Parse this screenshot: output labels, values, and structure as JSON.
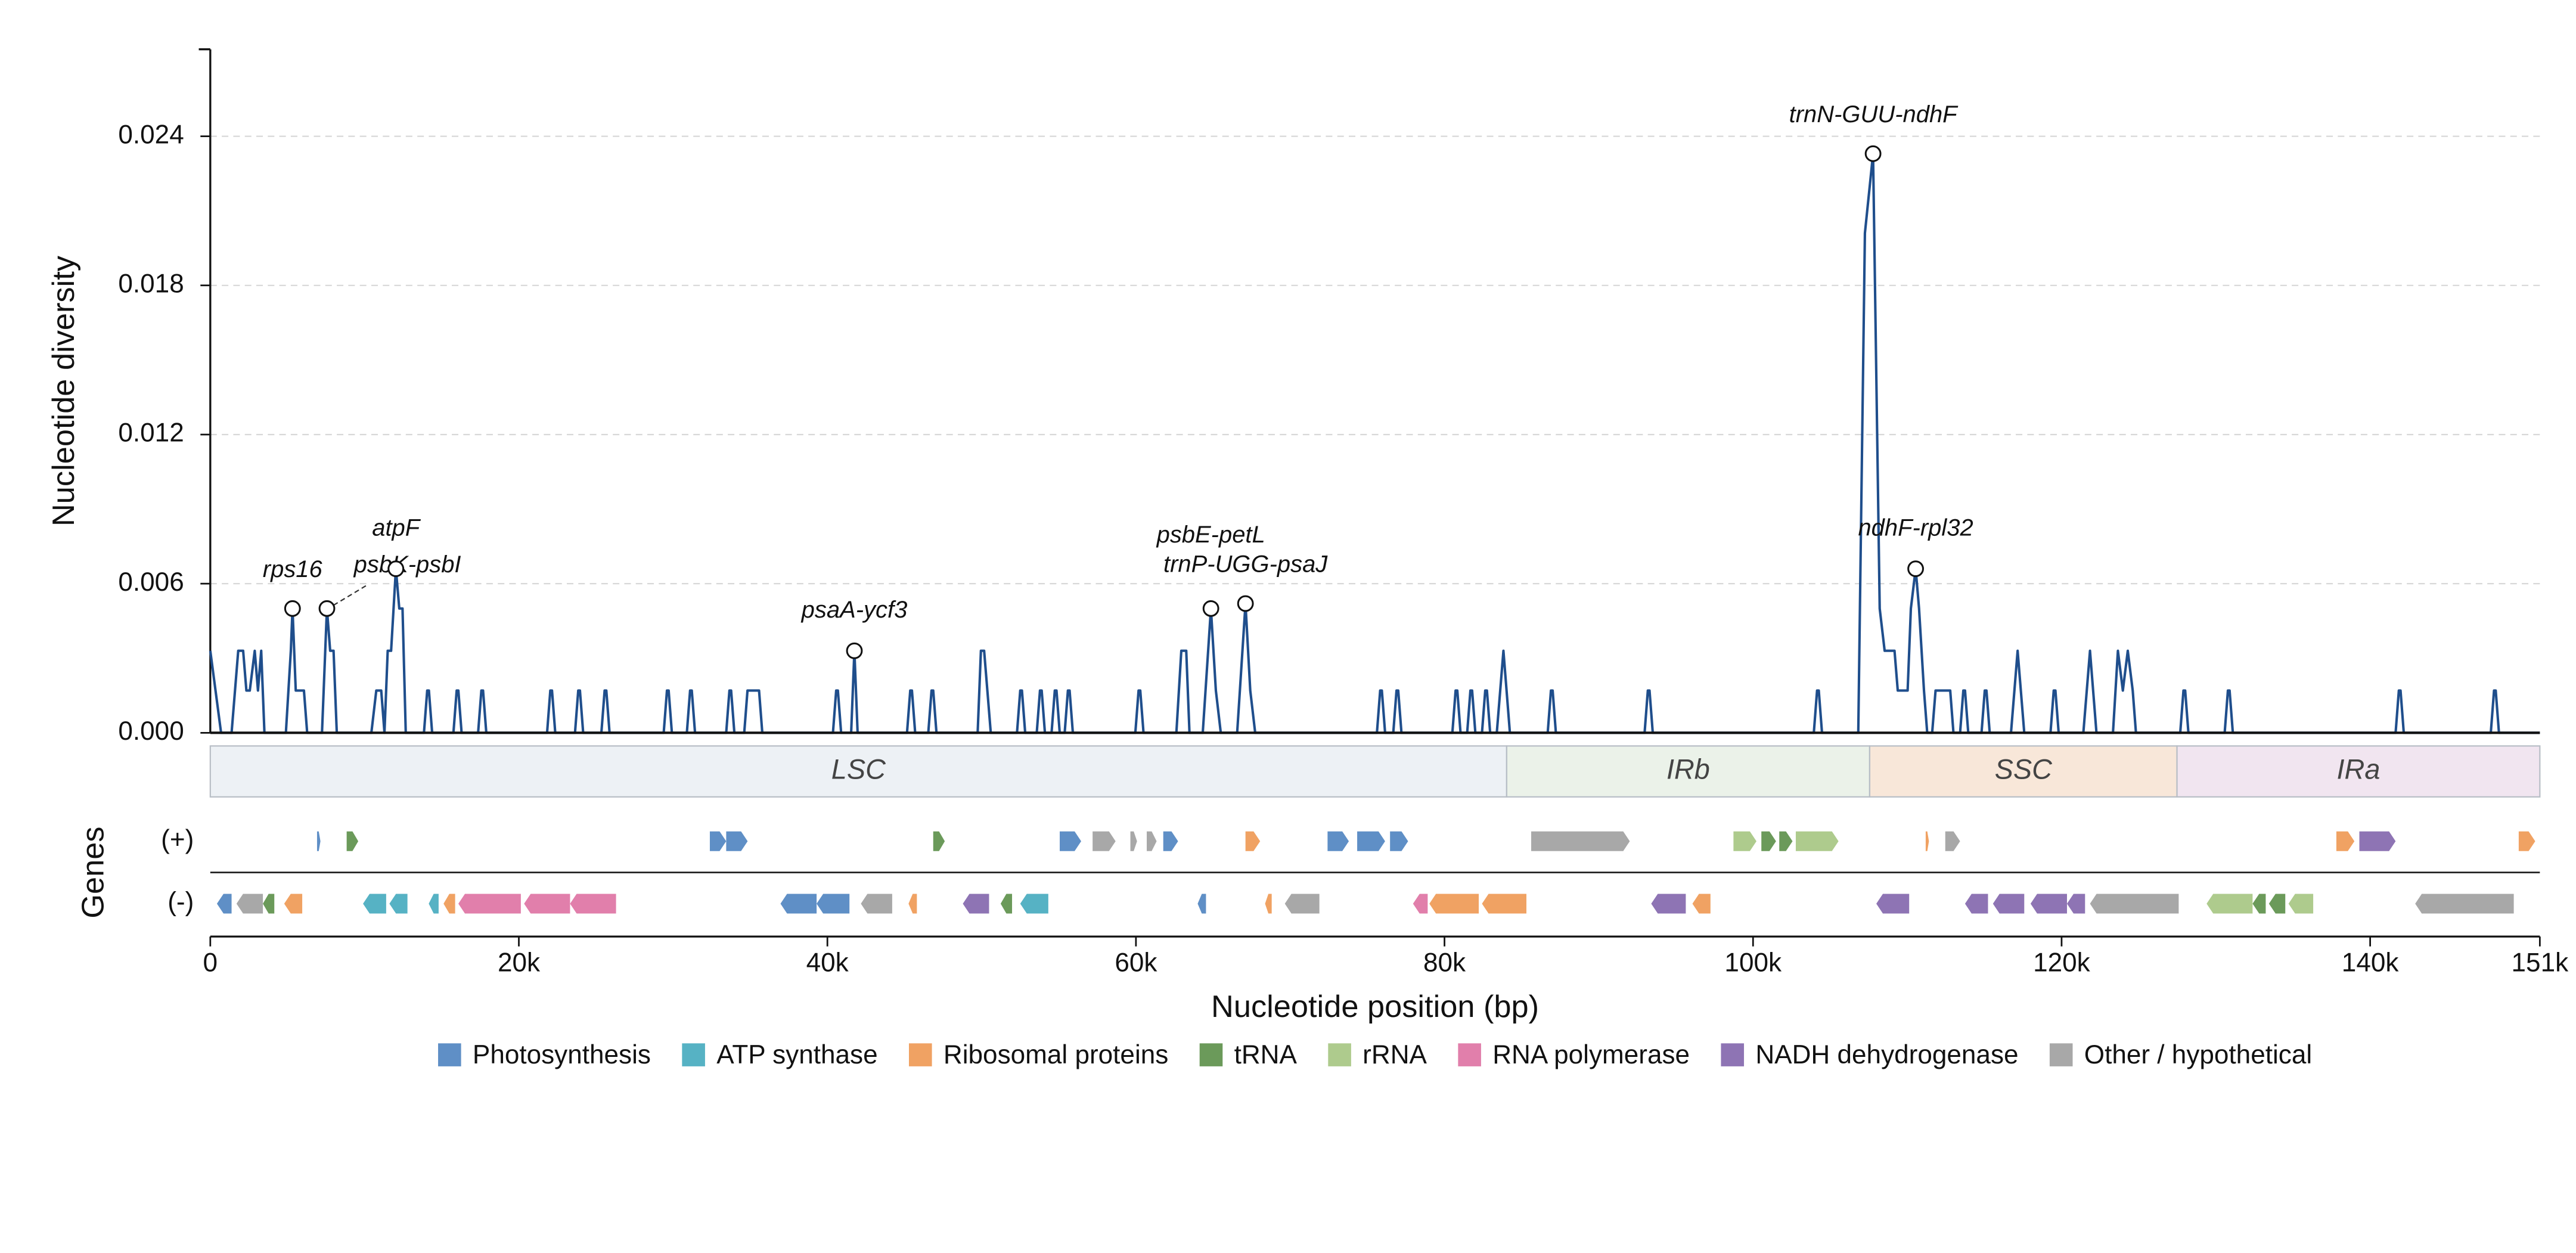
{
  "chart_data": {
    "type": "line",
    "ylabel": "Nucleotide diversity",
    "xlabel": "Nucleotide position (bp)",
    "track_label": "Genes",
    "xlim": [
      0,
      151000
    ],
    "ylim": [
      0,
      0.0275
    ],
    "xticks": [
      0,
      {
        "value": 20000,
        "label": "20k"
      },
      {
        "value": 40000,
        "label": "40k"
      },
      {
        "value": 60000,
        "label": "60k"
      },
      {
        "value": 80000,
        "label": "80k"
      },
      {
        "value": 100000,
        "label": "100k"
      },
      {
        "value": 120000,
        "label": "120k"
      },
      {
        "value": 140000,
        "label": "140k"
      },
      {
        "value": 151000,
        "label": "151k"
      }
    ],
    "yticks": [
      {
        "value": 0,
        "label": "0.000"
      },
      {
        "value": 0.006,
        "label": "0.006"
      },
      {
        "value": 0.012,
        "label": "0.012"
      },
      {
        "value": 0.018,
        "label": "0.018"
      },
      {
        "value": 0.024,
        "label": "0.024"
      }
    ],
    "grid": true,
    "x": [
      0,
      700,
      1380,
      1810,
      2130,
      2340,
      2560,
      2880,
      3090,
      3300,
      3510,
      4900,
      5220,
      5330,
      5540,
      6070,
      6280,
      7240,
      7560,
      7770,
      7990,
      8200,
      10440,
      10760,
      11080,
      11290,
      11500,
      11720,
      12030,
      12250,
      12460,
      12670,
      13850,
      14060,
      14170,
      14380,
      15760,
      15970,
      16080,
      16290,
      17360,
      17570,
      17680,
      17890,
      21830,
      22040,
      22150,
      22360,
      23640,
      23850,
      23960,
      24170,
      25350,
      25560,
      25670,
      25880,
      29390,
      29600,
      29710,
      29920,
      30890,
      31100,
      31210,
      31420,
      33440,
      33650,
      33760,
      33970,
      34610,
      34820,
      35570,
      35780,
      40360,
      40570,
      40680,
      40890,
      41540,
      41750,
      41960,
      45160,
      45370,
      45480,
      45690,
      46540,
      46750,
      46860,
      47070,
      49740,
      49950,
      50160,
      50590,
      52290,
      52500,
      52610,
      52820,
      53570,
      53780,
      53890,
      54100,
      54530,
      54740,
      54850,
      55060,
      55380,
      55590,
      55700,
      55910,
      59960,
      60170,
      60280,
      60490,
      62620,
      62940,
      63260,
      63470,
      64330,
      64860,
      65180,
      65500,
      66560,
      67100,
      67410,
      67730,
      75620,
      75830,
      75940,
      76150,
      76680,
      76890,
      77000,
      77210,
      80510,
      80720,
      80830,
      81040,
      81470,
      81680,
      81790,
      82000,
      82430,
      82640,
      82750,
      82960,
      83390,
      83820,
      84240,
      86690,
      86900,
      87010,
      87220,
      92970,
      93180,
      93290,
      93500,
      103940,
      104150,
      104260,
      104470,
      106820,
      107250,
      107780,
      108210,
      108530,
      109170,
      109380,
      110020,
      110230,
      110540,
      110760,
      111080,
      111290,
      111610,
      111830,
      112780,
      112990,
      113420,
      113630,
      113740,
      113950,
      114810,
      115020,
      115130,
      115340,
      116720,
      117150,
      117580,
      119280,
      119490,
      119600,
      119810,
      121410,
      121840,
      122260,
      123330,
      123650,
      123970,
      124290,
      124610,
      124820,
      127690,
      127900,
      128010,
      128220,
      130570,
      130780,
      130890,
      131100,
      141650,
      141860,
      141970,
      142180,
      147820,
      148030,
      148140,
      148350,
      151000
    ],
    "series": [
      {
        "color": "#1f4e8c",
        "values": [
          0.0033,
          0,
          0,
          0.0033,
          0.0033,
          0.0017,
          0.0017,
          0.0033,
          0.0017,
          0.0033,
          0,
          0,
          0.0033,
          0.005,
          0.0017,
          0.0017,
          0,
          0,
          0.005,
          0.0033,
          0.0033,
          0,
          0,
          0.0017,
          0.0017,
          0,
          0.0033,
          0.0033,
          0.0066,
          0.005,
          0.005,
          0,
          0,
          0.0017,
          0.0017,
          0,
          0,
          0.0017,
          0.0017,
          0,
          0,
          0.0017,
          0.0017,
          0,
          0,
          0.0017,
          0.0017,
          0,
          0,
          0.0017,
          0.0017,
          0,
          0,
          0.0017,
          0.0017,
          0,
          0,
          0.0017,
          0.0017,
          0,
          0,
          0.0017,
          0.0017,
          0,
          0,
          0.0017,
          0.0017,
          0,
          0,
          0.0017,
          0.0017,
          0,
          0,
          0.0017,
          0.0017,
          0,
          0,
          0.0033,
          0,
          0,
          0.0017,
          0.0017,
          0,
          0,
          0.0017,
          0.0017,
          0,
          0,
          0.0033,
          0.0033,
          0,
          0,
          0.0017,
          0.0017,
          0,
          0,
          0.0017,
          0.0017,
          0,
          0,
          0.0017,
          0.0017,
          0,
          0,
          0.0017,
          0.0017,
          0,
          0,
          0.0017,
          0.0017,
          0,
          0,
          0.0033,
          0.0033,
          0,
          0,
          0.005,
          0.0017,
          0,
          0,
          0.0052,
          0.0017,
          0,
          0,
          0.0017,
          0.0017,
          0,
          0,
          0.0017,
          0.0017,
          0,
          0,
          0.0017,
          0.0017,
          0,
          0,
          0.0017,
          0.0017,
          0,
          0,
          0.0017,
          0.0017,
          0,
          0,
          0.0033,
          0,
          0,
          0.0017,
          0.0017,
          0,
          0,
          0.0017,
          0.0017,
          0,
          0,
          0.0017,
          0.0017,
          0,
          0,
          0.0201,
          0.0233,
          0.005,
          0.0033,
          0.0033,
          0.0017,
          0.0017,
          0.005,
          0.0066,
          0.005,
          0.0017,
          0,
          0,
          0.0017,
          0.0017,
          0,
          0,
          0.0017,
          0.0017,
          0,
          0,
          0.0017,
          0.0017,
          0,
          0,
          0.0033,
          0,
          0,
          0.0017,
          0.0017,
          0,
          0,
          0.0033,
          0,
          0,
          0.0033,
          0.0017,
          0.0033,
          0.0017,
          0,
          0,
          0.0017,
          0.0017,
          0,
          0,
          0.0017,
          0.0017,
          0,
          0,
          0.0017,
          0.0017,
          0,
          0,
          0.0017,
          0.0017,
          0,
          0
        ]
      }
    ],
    "annotations": [
      {
        "label": "rps16",
        "x": 5330,
        "y": 0.005
      },
      {
        "label": "psbK-psbI",
        "x": 7560,
        "y": 0.005
      },
      {
        "label": "atpF",
        "x": 12030,
        "y": 0.0066
      },
      {
        "label": "psaA-ycf3",
        "x": 41750,
        "y": 0.0033
      },
      {
        "label": "psbE-petL",
        "x": 64860,
        "y": 0.005
      },
      {
        "label": "trnP-UGG-psaJ",
        "x": 67100,
        "y": 0.0052
      },
      {
        "label": "trnN-GUU-ndhF",
        "x": 107780,
        "y": 0.0233
      },
      {
        "label": "ndhF-rpl32",
        "x": 110540,
        "y": 0.0066
      }
    ],
    "regions": [
      {
        "label": "LSC",
        "start": 0,
        "end": 84030,
        "color": "#edf1f5"
      },
      {
        "label": "IRb",
        "start": 84030,
        "end": 107560,
        "color": "#ebf2e9"
      },
      {
        "label": "SSC",
        "start": 107560,
        "end": 127480,
        "color": "#f8e7d9"
      },
      {
        "label": "IRa",
        "start": 127480,
        "end": 151000,
        "color": "#f1e5f0"
      }
    ],
    "strand_labels": [
      "(+)",
      "(-)"
    ],
    "gene_groups": [
      {
        "name": "Photosynthesis",
        "color": "#5f8fc6"
      },
      {
        "name": "ATP synthase",
        "color": "#56b2c4"
      },
      {
        "name": "Ribosomal proteins",
        "color": "#f0a263"
      },
      {
        "name": "tRNA",
        "color": "#6b9a5a"
      },
      {
        "name": "rRNA",
        "color": "#aecb8d"
      },
      {
        "name": "RNA polymerase",
        "color": "#e17fab"
      },
      {
        "name": "NADH dehydrogenase",
        "color": "#8e74b4"
      },
      {
        "name": "Other / hypothetical",
        "color": "#a8a8a8"
      }
    ],
    "genes": [
      {
        "start": 6920,
        "end": 7140,
        "strand": 0,
        "group": 0
      },
      {
        "start": 8840,
        "end": 9590,
        "strand": 0,
        "group": 3
      },
      {
        "start": 32380,
        "end": 33440,
        "strand": 0,
        "group": 0
      },
      {
        "start": 33440,
        "end": 34830,
        "strand": 0,
        "group": 0
      },
      {
        "start": 46860,
        "end": 47610,
        "strand": 0,
        "group": 3
      },
      {
        "start": 55060,
        "end": 56450,
        "strand": 0,
        "group": 0
      },
      {
        "start": 57190,
        "end": 58680,
        "strand": 0,
        "group": 7
      },
      {
        "start": 59640,
        "end": 60070,
        "strand": 0,
        "group": 7
      },
      {
        "start": 60700,
        "end": 61340,
        "strand": 0,
        "group": 7
      },
      {
        "start": 61770,
        "end": 62730,
        "strand": 0,
        "group": 0
      },
      {
        "start": 67100,
        "end": 68050,
        "strand": 0,
        "group": 2
      },
      {
        "start": 72420,
        "end": 73800,
        "strand": 0,
        "group": 0
      },
      {
        "start": 74340,
        "end": 76150,
        "strand": 0,
        "group": 0
      },
      {
        "start": 76470,
        "end": 77640,
        "strand": 0,
        "group": 0
      },
      {
        "start": 85620,
        "end": 92010,
        "strand": 0,
        "group": 7
      },
      {
        "start": 98730,
        "end": 100220,
        "strand": 0,
        "group": 4
      },
      {
        "start": 100540,
        "end": 101490,
        "strand": 0,
        "group": 3
      },
      {
        "start": 101700,
        "end": 102560,
        "strand": 0,
        "group": 3
      },
      {
        "start": 102770,
        "end": 105540,
        "strand": 0,
        "group": 4
      },
      {
        "start": 111190,
        "end": 111400,
        "strand": 0,
        "group": 2
      },
      {
        "start": 112460,
        "end": 113420,
        "strand": 0,
        "group": 7
      },
      {
        "start": 137810,
        "end": 138980,
        "strand": 0,
        "group": 2
      },
      {
        "start": 139300,
        "end": 141650,
        "strand": 0,
        "group": 6
      },
      {
        "start": 149630,
        "end": 150700,
        "strand": 0,
        "group": 2
      },
      {
        "start": 430,
        "end": 1380,
        "strand": 1,
        "group": 0
      },
      {
        "start": 1700,
        "end": 3410,
        "strand": 1,
        "group": 7
      },
      {
        "start": 3410,
        "end": 4150,
        "strand": 1,
        "group": 3
      },
      {
        "start": 4790,
        "end": 5960,
        "strand": 1,
        "group": 2
      },
      {
        "start": 9900,
        "end": 11400,
        "strand": 1,
        "group": 1
      },
      {
        "start": 11610,
        "end": 12780,
        "strand": 1,
        "group": 1
      },
      {
        "start": 14160,
        "end": 14800,
        "strand": 1,
        "group": 1
      },
      {
        "start": 15120,
        "end": 15870,
        "strand": 1,
        "group": 2
      },
      {
        "start": 16080,
        "end": 20130,
        "strand": 1,
        "group": 5
      },
      {
        "start": 20340,
        "end": 23320,
        "strand": 1,
        "group": 5
      },
      {
        "start": 23320,
        "end": 26300,
        "strand": 1,
        "group": 5
      },
      {
        "start": 36960,
        "end": 39300,
        "strand": 1,
        "group": 0
      },
      {
        "start": 39300,
        "end": 41430,
        "strand": 1,
        "group": 0
      },
      {
        "start": 42170,
        "end": 44200,
        "strand": 1,
        "group": 7
      },
      {
        "start": 45260,
        "end": 45800,
        "strand": 1,
        "group": 2
      },
      {
        "start": 48780,
        "end": 50480,
        "strand": 1,
        "group": 6
      },
      {
        "start": 51230,
        "end": 51970,
        "strand": 1,
        "group": 3
      },
      {
        "start": 52500,
        "end": 54320,
        "strand": 1,
        "group": 1
      },
      {
        "start": 64000,
        "end": 64540,
        "strand": 1,
        "group": 0
      },
      {
        "start": 68370,
        "end": 68800,
        "strand": 1,
        "group": 2
      },
      {
        "start": 69650,
        "end": 71890,
        "strand": 1,
        "group": 7
      },
      {
        "start": 77960,
        "end": 78910,
        "strand": 1,
        "group": 5
      },
      {
        "start": 79020,
        "end": 82220,
        "strand": 1,
        "group": 2
      },
      {
        "start": 82430,
        "end": 85310,
        "strand": 1,
        "group": 2
      },
      {
        "start": 93400,
        "end": 95640,
        "strand": 1,
        "group": 6
      },
      {
        "start": 96070,
        "end": 97240,
        "strand": 1,
        "group": 2
      },
      {
        "start": 107990,
        "end": 110120,
        "strand": 1,
        "group": 6
      },
      {
        "start": 113740,
        "end": 115230,
        "strand": 1,
        "group": 6
      },
      {
        "start": 115550,
        "end": 117580,
        "strand": 1,
        "group": 6
      },
      {
        "start": 117990,
        "end": 120350,
        "strand": 1,
        "group": 6
      },
      {
        "start": 120350,
        "end": 121520,
        "strand": 1,
        "group": 6
      },
      {
        "start": 121840,
        "end": 127590,
        "strand": 1,
        "group": 7
      },
      {
        "start": 129400,
        "end": 132380,
        "strand": 1,
        "group": 4
      },
      {
        "start": 132380,
        "end": 133230,
        "strand": 1,
        "group": 3
      },
      {
        "start": 133440,
        "end": 134500,
        "strand": 1,
        "group": 3
      },
      {
        "start": 134710,
        "end": 136310,
        "strand": 1,
        "group": 4
      },
      {
        "start": 142920,
        "end": 149310,
        "strand": 1,
        "group": 7
      }
    ]
  }
}
